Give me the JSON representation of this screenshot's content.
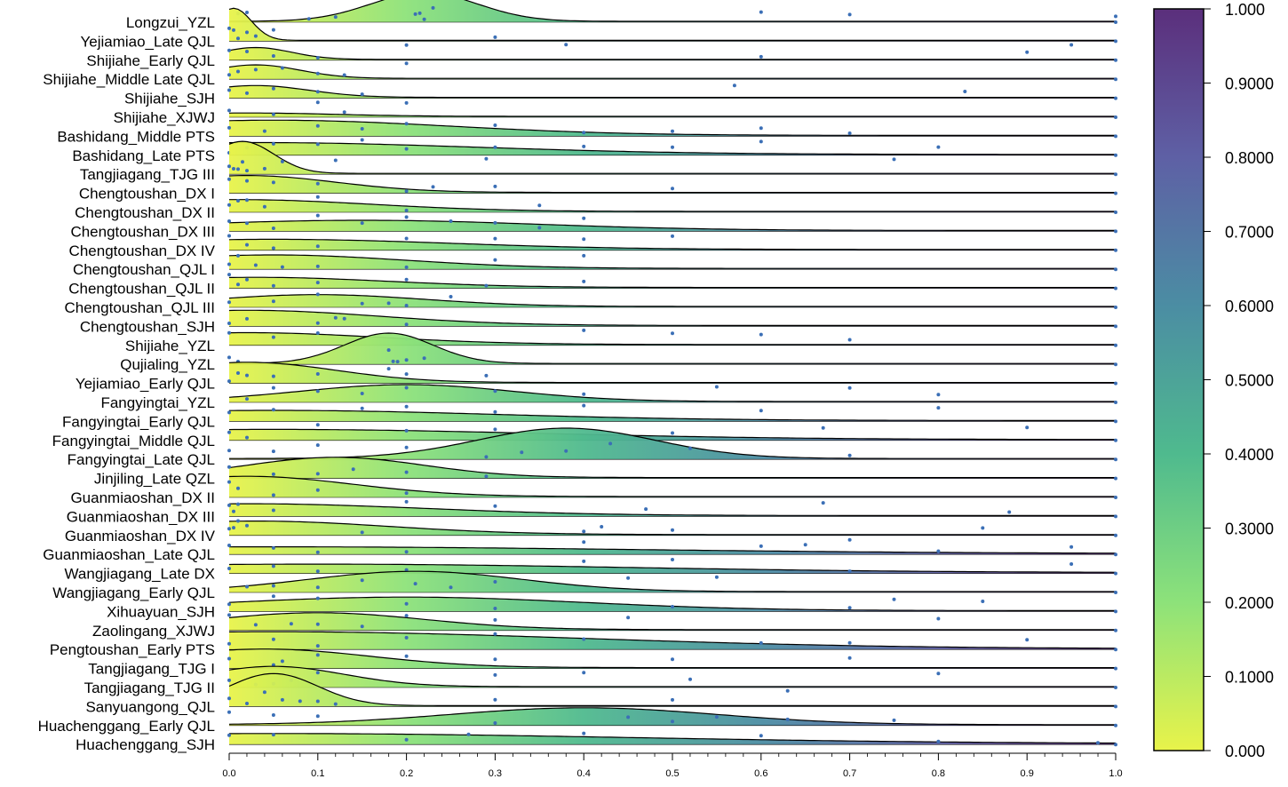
{
  "chart_data": {
    "type": "ridgeline-density-with-jittered-points",
    "title": "",
    "xlabel": "",
    "ylabel": "",
    "xlim": [
      0,
      1
    ],
    "x_ticks": [
      "0.0",
      "0.1",
      "0.2",
      "0.3",
      "0.4",
      "0.5",
      "0.6",
      "0.7",
      "0.8",
      "0.9",
      "1.0"
    ],
    "colorbar": {
      "range": [
        0,
        1
      ],
      "ticks": [
        "0.000",
        "0.1000",
        "0.2000",
        "0.3000",
        "0.4000",
        "0.5000",
        "0.6000",
        "0.7000",
        "0.8000",
        "0.9000",
        "1.000"
      ],
      "colormap": [
        "#e8f34a",
        "#8de27a",
        "#4fba8e",
        "#4b8da3",
        "#5e60a5",
        "#5b2f7c"
      ]
    },
    "point_color": "#3b6fb6",
    "series": [
      {
        "name": "Longzui_YZL",
        "peak_x": 0.22,
        "peak_rel": 0.85,
        "width": 0.06,
        "fill_end": 0.98,
        "points": [
          0.01,
          0.02,
          0.09,
          0.12,
          0.21,
          0.215,
          0.22,
          0.23,
          0.6,
          0.7,
          1.0
        ]
      },
      {
        "name": "Yejiamiao_Late QJL",
        "peak_x": 0.005,
        "peak_rel": 0.95,
        "width": 0.02,
        "fill_end": 0.35,
        "points": [
          0.0,
          0.005,
          0.01,
          0.02,
          0.03,
          0.05,
          0.3
        ]
      },
      {
        "name": "Shijiahe_Early QJL",
        "peak_x": 0.03,
        "peak_rel": 0.35,
        "width": 0.04,
        "fill_end": 1.0,
        "points": [
          0.0,
          0.02,
          0.05,
          0.1,
          0.2,
          0.38,
          0.6,
          0.9,
          0.95
        ]
      },
      {
        "name": "Shijiahe_Middle Late QJL",
        "peak_x": 0.03,
        "peak_rel": 0.4,
        "width": 0.05,
        "fill_end": 0.35,
        "points": [
          0.0,
          0.01,
          0.03,
          0.06,
          0.1,
          0.13,
          0.2
        ]
      },
      {
        "name": "Shijiahe_SJH",
        "peak_x": 0.03,
        "peak_rel": 0.35,
        "width": 0.06,
        "fill_end": 0.35,
        "points": [
          0.0,
          0.02,
          0.05,
          0.1,
          0.15,
          0.57,
          0.83
        ]
      },
      {
        "name": "Shijiahe_XJWJ",
        "peak_x": 0.02,
        "peak_rel": 0.1,
        "width": 0.1,
        "fill_end": 0.35,
        "points": [
          0.0,
          0.05,
          0.1,
          0.13,
          0.2
        ]
      },
      {
        "name": "Bashidang_Middle PTS",
        "peak_x": 0.05,
        "peak_rel": 0.45,
        "width": 0.2,
        "fill_end": 1.0,
        "points": [
          0.0,
          0.04,
          0.1,
          0.15,
          0.2,
          0.3,
          0.4,
          0.5,
          0.6,
          0.7
        ]
      },
      {
        "name": "Bashidang_Late PTS",
        "peak_x": 0.03,
        "peak_rel": 0.35,
        "width": 0.25,
        "fill_end": 1.0,
        "points": [
          0.0,
          0.02,
          0.05,
          0.1,
          0.15,
          0.2,
          0.3,
          0.4,
          0.5,
          0.6,
          0.8
        ]
      },
      {
        "name": "Tangjiagang_TJG III",
        "peak_x": 0.015,
        "peak_rel": 0.95,
        "width": 0.035,
        "fill_end": 1.0,
        "points": [
          0.0,
          0.005,
          0.01,
          0.015,
          0.02,
          0.04,
          0.06,
          0.12,
          0.29,
          0.75
        ]
      },
      {
        "name": "Chengtoushan_DX I",
        "peak_x": 0.02,
        "peak_rel": 0.5,
        "width": 0.1,
        "fill_end": 1.0,
        "points": [
          0.0,
          0.02,
          0.05,
          0.1,
          0.2,
          0.23,
          0.3,
          0.5
        ]
      },
      {
        "name": "Chengtoushan_DX II",
        "peak_x": 0.01,
        "peak_rel": 0.35,
        "width": 0.15,
        "fill_end": 1.0,
        "points": [
          0.0,
          0.01,
          0.02,
          0.04,
          0.1,
          0.2,
          0.35
        ]
      },
      {
        "name": "Chengtoushan_DX III",
        "peak_x": 0.15,
        "peak_rel": 0.3,
        "width": 0.2,
        "fill_end": 1.0,
        "points": [
          0.0,
          0.02,
          0.05,
          0.1,
          0.15,
          0.2,
          0.25,
          0.3,
          0.35,
          0.4
        ]
      },
      {
        "name": "Chengtoushan_DX IV",
        "peak_x": 0.05,
        "peak_rel": 0.3,
        "width": 0.2,
        "fill_end": 1.0,
        "points": [
          0.0,
          0.02,
          0.05,
          0.1,
          0.2,
          0.3,
          0.4,
          0.5
        ]
      },
      {
        "name": "Chengtoushan_QJL I",
        "peak_x": 0.05,
        "peak_rel": 0.4,
        "width": 0.15,
        "fill_end": 1.0,
        "points": [
          0.0,
          0.01,
          0.03,
          0.06,
          0.1,
          0.2,
          0.3,
          0.4
        ]
      },
      {
        "name": "Chengtoushan_QJL II",
        "peak_x": 0.03,
        "peak_rel": 0.3,
        "width": 0.15,
        "fill_end": 1.0,
        "points": [
          0.0,
          0.01,
          0.02,
          0.05,
          0.1,
          0.2,
          0.29,
          0.4
        ]
      },
      {
        "name": "Chengtoushan_QJL III",
        "peak_x": 0.1,
        "peak_rel": 0.35,
        "width": 0.12,
        "fill_end": 0.5,
        "points": [
          0.0,
          0.05,
          0.1,
          0.15,
          0.18,
          0.2,
          0.25
        ]
      },
      {
        "name": "Chengtoushan_SJH",
        "peak_x": 0.02,
        "peak_rel": 0.45,
        "width": 0.15,
        "fill_end": 0.5,
        "points": [
          0.0,
          0.02,
          0.1,
          0.12,
          0.13,
          0.2
        ]
      },
      {
        "name": "Shijiahe_YZL",
        "peak_x": 0.02,
        "peak_rel": 0.35,
        "width": 0.15,
        "fill_end": 1.0,
        "points": [
          0.0,
          0.05,
          0.1,
          0.2,
          0.4,
          0.5,
          0.6,
          0.7
        ]
      },
      {
        "name": "Qujialing_YZL",
        "peak_x": 0.18,
        "peak_rel": 0.9,
        "width": 0.05,
        "fill_end": 1.0,
        "points": [
          0.0,
          0.01,
          0.18,
          0.185,
          0.19,
          0.2,
          0.22
        ]
      },
      {
        "name": "Yejiamiao_Early QJL",
        "peak_x": 0.02,
        "peak_rel": 0.6,
        "width": 0.1,
        "fill_end": 0.35,
        "points": [
          0.0,
          0.01,
          0.02,
          0.05,
          0.1,
          0.18,
          0.2,
          0.29
        ]
      },
      {
        "name": "Fangyingtai_YZL",
        "peak_x": 0.2,
        "peak_rel": 0.5,
        "width": 0.12,
        "fill_end": 1.0,
        "points": [
          0.02,
          0.05,
          0.1,
          0.15,
          0.2,
          0.3,
          0.4,
          0.55,
          0.7,
          0.8
        ]
      },
      {
        "name": "Fangyingtai_Early QJL",
        "peak_x": 0.05,
        "peak_rel": 0.3,
        "width": 0.25,
        "fill_end": 1.0,
        "points": [
          0.0,
          0.05,
          0.15,
          0.2,
          0.3,
          0.4,
          0.6,
          0.8
        ]
      },
      {
        "name": "Fangyingtai_Middle QJL",
        "peak_x": 0.05,
        "peak_rel": 0.3,
        "width": 0.3,
        "fill_end": 1.0,
        "points": [
          0.0,
          0.02,
          0.1,
          0.2,
          0.3,
          0.5,
          0.67,
          0.9
        ]
      },
      {
        "name": "Fangyingtai_Late QJL",
        "peak_x": 0.38,
        "peak_rel": 0.9,
        "width": 0.1,
        "fill_end": 1.0,
        "points": [
          0.0,
          0.05,
          0.1,
          0.2,
          0.29,
          0.33,
          0.38,
          0.43,
          0.52,
          0.7
        ]
      },
      {
        "name": "Jinjiling_Late QZL",
        "peak_x": 0.12,
        "peak_rel": 0.6,
        "width": 0.1,
        "fill_end": 0.2,
        "points": [
          0.0,
          0.05,
          0.1,
          0.14,
          0.2,
          0.29
        ]
      },
      {
        "name": "Guanmiaoshan_DX II",
        "peak_x": 0.02,
        "peak_rel": 0.6,
        "width": 0.12,
        "fill_end": 0.35,
        "points": [
          0.0,
          0.01,
          0.05,
          0.1,
          0.2
        ]
      },
      {
        "name": "Guanmiaoshan_DX III",
        "peak_x": 0.02,
        "peak_rel": 0.35,
        "width": 0.2,
        "fill_end": 1.0,
        "points": [
          0.0,
          0.005,
          0.01,
          0.05,
          0.2,
          0.3,
          0.47,
          0.67,
          0.88
        ]
      },
      {
        "name": "Guanmiaoshan_DX IV",
        "peak_x": 0.03,
        "peak_rel": 0.4,
        "width": 0.15,
        "fill_end": 0.35,
        "points": [
          0.0,
          0.005,
          0.01,
          0.02,
          0.15,
          0.4,
          0.42,
          0.5,
          0.85
        ]
      },
      {
        "name": "Guanmiaoshan_Late QJL",
        "peak_x": 0.05,
        "peak_rel": 0.2,
        "width": 0.4,
        "fill_end": 1.0,
        "points": [
          0.0,
          0.05,
          0.1,
          0.2,
          0.4,
          0.6,
          0.65,
          0.7,
          0.8,
          0.95
        ]
      },
      {
        "name": "Wangjiagang_Late DX",
        "peak_x": 0.1,
        "peak_rel": 0.25,
        "width": 0.35,
        "fill_end": 1.0,
        "points": [
          0.0,
          0.05,
          0.1,
          0.2,
          0.4,
          0.5,
          0.7,
          0.95
        ]
      },
      {
        "name": "Wangjiagang_Early QJL",
        "peak_x": 0.21,
        "peak_rel": 0.6,
        "width": 0.12,
        "fill_end": 1.0,
        "points": [
          0.02,
          0.05,
          0.1,
          0.15,
          0.21,
          0.25,
          0.3,
          0.45,
          0.55
        ]
      },
      {
        "name": "Xihuayuan_SJH",
        "peak_x": 0.2,
        "peak_rel": 0.4,
        "width": 0.2,
        "fill_end": 1.0,
        "points": [
          0.0,
          0.05,
          0.1,
          0.2,
          0.3,
          0.5,
          0.7,
          0.75,
          0.85
        ]
      },
      {
        "name": "Zaolingang_XJWJ",
        "peak_x": 0.1,
        "peak_rel": 0.5,
        "width": 0.12,
        "fill_end": 1.0,
        "points": [
          0.0,
          0.03,
          0.07,
          0.1,
          0.15,
          0.2,
          0.3,
          0.45,
          0.8
        ]
      },
      {
        "name": "Pengtoushan_Early PTS",
        "peak_x": 0.05,
        "peak_rel": 0.5,
        "width": 0.35,
        "fill_end": 1.0,
        "points": [
          0.0,
          0.05,
          0.1,
          0.2,
          0.3,
          0.4,
          0.6,
          0.7,
          0.9
        ]
      },
      {
        "name": "Tangjiagang_TJG I",
        "peak_x": 0.04,
        "peak_rel": 0.55,
        "width": 0.12,
        "fill_end": 1.0,
        "points": [
          0.0,
          0.05,
          0.06,
          0.1,
          0.2,
          0.3,
          0.5,
          0.7
        ]
      },
      {
        "name": "Tangjiagang_TJG II",
        "peak_x": 0.05,
        "peak_rel": 0.6,
        "width": 0.08,
        "fill_end": 1.0,
        "points": [
          0.0,
          0.03,
          0.05,
          0.07,
          0.1,
          0.3,
          0.4,
          0.52,
          0.8
        ]
      },
      {
        "name": "Sanyuangong_QJL",
        "peak_x": 0.05,
        "peak_rel": 0.95,
        "width": 0.05,
        "fill_end": 1.0,
        "points": [
          0.0,
          0.02,
          0.04,
          0.06,
          0.08,
          0.1,
          0.12,
          0.3,
          0.5,
          0.63
        ]
      },
      {
        "name": "Huachenggang_Early QJL",
        "peak_x": 0.4,
        "peak_rel": 0.5,
        "width": 0.15,
        "fill_end": 1.0,
        "points": [
          0.0,
          0.05,
          0.1,
          0.3,
          0.45,
          0.5,
          0.55,
          0.63,
          0.75
        ]
      },
      {
        "name": "Huachenggang_SJH",
        "peak_x": 0.05,
        "peak_rel": 0.3,
        "width": 0.4,
        "fill_end": 1.0,
        "points": [
          0.0,
          0.05,
          0.2,
          0.27,
          0.4,
          0.6,
          0.8,
          0.98
        ]
      }
    ]
  }
}
